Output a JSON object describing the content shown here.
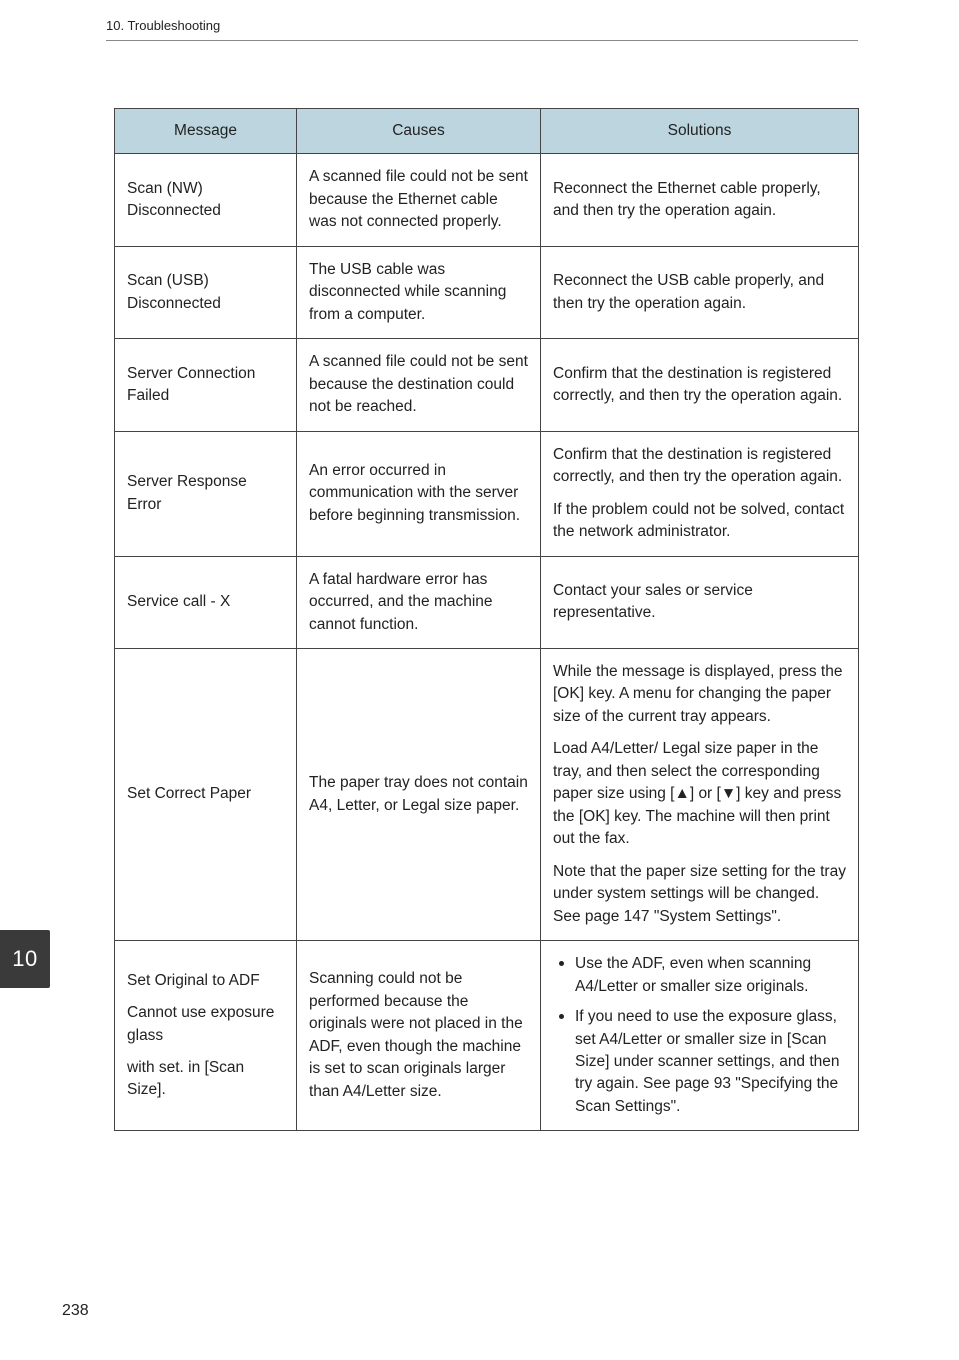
{
  "header": {
    "section": "10. Troubleshooting"
  },
  "chapter_tab": "10",
  "page_number": "238",
  "table": {
    "head": {
      "message": "Message",
      "causes": "Causes",
      "solutions": "Solutions"
    },
    "rows": [
      {
        "message": "Scan (NW) Disconnected",
        "causes": "A scanned file could not be sent because the Ethernet cable was not connected properly.",
        "solutions": [
          "Reconnect the Ethernet cable properly, and then try the operation again."
        ]
      },
      {
        "message": "Scan (USB) Disconnected",
        "causes": "The USB cable was disconnected while scanning from a computer.",
        "solutions": [
          "Reconnect the USB cable properly, and then try the operation again."
        ]
      },
      {
        "message": "Server Connection Failed",
        "causes": "A scanned file could not be sent because the destination could not be reached.",
        "solutions": [
          "Confirm that the destination is registered correctly, and then try the operation again."
        ]
      },
      {
        "message": "Server Response Error",
        "causes": "An error occurred in communication with the server before beginning transmission.",
        "solutions": [
          "Confirm that the destination is registered correctly, and then try the operation again.",
          "If the problem could not be solved, contact the network administrator."
        ]
      },
      {
        "message": "Service call - X",
        "causes": "A fatal hardware error has occurred, and the machine cannot function.",
        "solutions": [
          "Contact your sales or service representative."
        ]
      },
      {
        "message": "Set Correct Paper",
        "causes": "The paper tray does not contain A4, Letter, or Legal size paper.",
        "solutions": [
          "While the message is displayed, press the [OK] key. A menu for changing the paper size of the current tray appears.",
          "Load A4/Letter/ Legal size paper in the tray, and then select the corresponding paper size using [▲] or [▼] key and press the [OK] key. The machine will then print out the fax.",
          "Note that the paper size setting for the tray under system settings will be changed. See page 147 \"System Settings\"."
        ]
      },
      {
        "message_lines": [
          "Set Original to ADF",
          "Cannot use exposure glass",
          "with set. in [Scan Size]."
        ],
        "causes": "Scanning could not be performed because the originals were not placed in the ADF, even though the machine is set to scan originals larger than A4/Letter size.",
        "bullets": [
          "Use the ADF, even when scanning A4/Letter or smaller size originals.",
          "If you need to use the exposure glass, set A4/Letter or smaller size in [Scan Size] under scanner settings, and then try again. See page 93 \"Specifying the Scan Settings\"."
        ]
      }
    ]
  }
}
